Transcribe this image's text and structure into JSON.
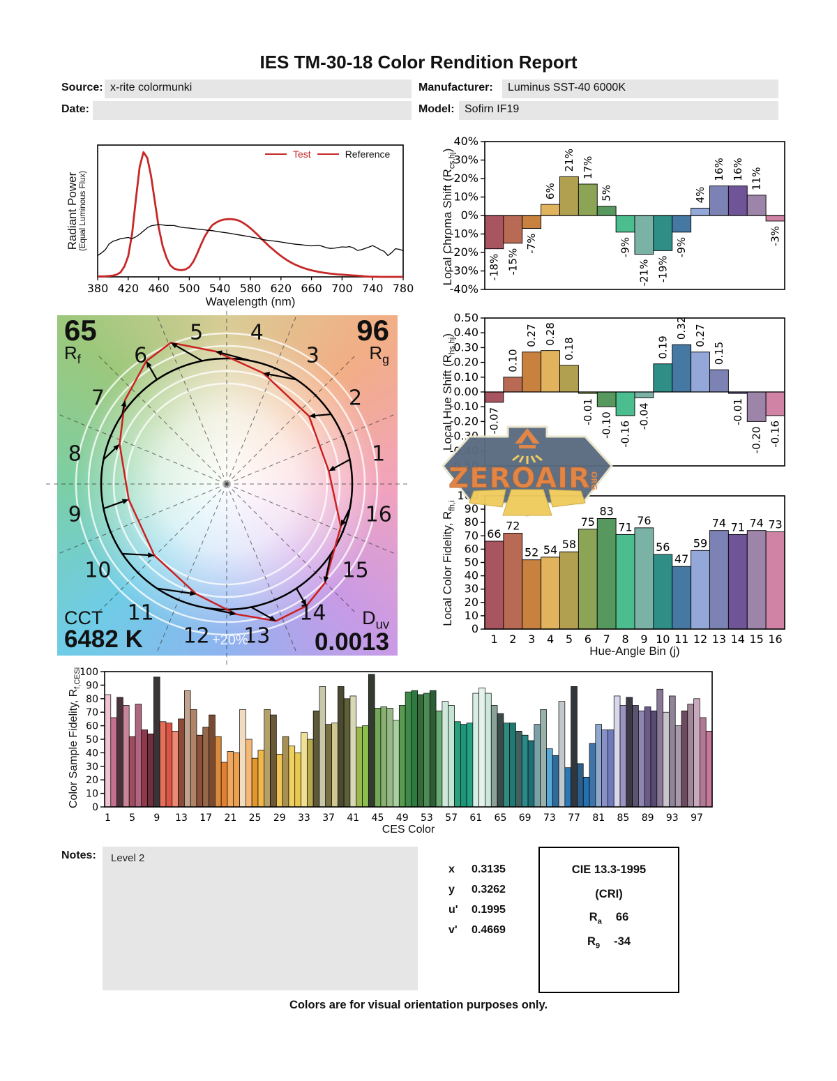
{
  "title": "IES TM-30-18 Color Rendition Report",
  "header": {
    "source_label": "Source:",
    "source_value": "x-rite colormunki",
    "manufacturer_label": "Manufacturer:",
    "manufacturer_value": "Luminus SST-40 6000K",
    "date_label": "Date:",
    "date_value": "",
    "model_label": "Model:",
    "model_value": "Sofirn IF19"
  },
  "watermark": {
    "text": "ZEROAIR",
    "suffix": "ORG",
    "badge_color": "#5a6b80",
    "accent": "#e0823f",
    "beam_color": "#f0cb5c",
    "border": "#ece4cc"
  },
  "bin_palette": [
    "#a85560",
    "#b96a55",
    "#c98140",
    "#e0b35c",
    "#b1a050",
    "#8ca455",
    "#57985f",
    "#4cbd8e",
    "#7ab3a5",
    "#2f8f87",
    "#4578a3",
    "#93a8d9",
    "#7d82b5",
    "#6f5598",
    "#9c85a8",
    "#d083a5"
  ],
  "chart_data": [
    {
      "id": "spd",
      "type": "line",
      "xlabel": "Wavelength (nm)",
      "ylabel": "Radiant Power",
      "ylabel2": "(Equal Luminous Flux)",
      "xlim": [
        380,
        780
      ],
      "ylim": [
        0,
        1.02
      ],
      "x_ticks": [
        380,
        420,
        460,
        500,
        540,
        580,
        620,
        660,
        700,
        740,
        780
      ],
      "legend": [
        {
          "label": "Test",
          "line_color": "#c62828",
          "text_color": "#c62828"
        },
        {
          "label": "Reference",
          "line_color": "#c62828",
          "text_color": "#111111"
        }
      ],
      "series": [
        {
          "name": "Test",
          "color": "#c62828",
          "width": 2.8,
          "x": [
            380,
            385,
            390,
            395,
            400,
            405,
            410,
            415,
            420,
            425,
            430,
            435,
            440,
            445,
            450,
            455,
            460,
            465,
            470,
            475,
            480,
            485,
            490,
            495,
            500,
            505,
            510,
            515,
            520,
            525,
            530,
            535,
            540,
            545,
            550,
            555,
            560,
            565,
            570,
            575,
            580,
            585,
            590,
            595,
            600,
            605,
            610,
            615,
            620,
            625,
            630,
            635,
            640,
            645,
            650,
            655,
            660,
            665,
            670,
            675,
            680,
            685,
            690,
            695,
            700,
            705,
            710,
            715,
            720,
            725,
            730,
            735,
            740,
            745,
            750,
            755,
            760,
            765,
            770,
            775,
            780
          ],
          "y": [
            0.004,
            0.004,
            0.005,
            0.007,
            0.01,
            0.018,
            0.035,
            0.08,
            0.16,
            0.33,
            0.6,
            0.85,
            0.965,
            0.92,
            0.78,
            0.58,
            0.38,
            0.24,
            0.15,
            0.09,
            0.065,
            0.055,
            0.052,
            0.058,
            0.075,
            0.115,
            0.175,
            0.245,
            0.31,
            0.36,
            0.4,
            0.42,
            0.435,
            0.443,
            0.447,
            0.447,
            0.443,
            0.435,
            0.42,
            0.4,
            0.377,
            0.35,
            0.322,
            0.292,
            0.263,
            0.235,
            0.21,
            0.185,
            0.162,
            0.141,
            0.122,
            0.105,
            0.091,
            0.079,
            0.068,
            0.059,
            0.051,
            0.044,
            0.038,
            0.033,
            0.029,
            0.025,
            0.022,
            0.019,
            0.017,
            0.015,
            0.013,
            0.011,
            0.009,
            0.007,
            0.004,
            0.002,
            0.001,
            0.001,
            0.0,
            0.0,
            0.0,
            0.0,
            0.0,
            0.0,
            0.0
          ]
        },
        {
          "name": "Reference",
          "color": "#000000",
          "width": 1.3,
          "x": [
            380,
            385,
            390,
            395,
            400,
            405,
            410,
            415,
            420,
            425,
            430,
            435,
            440,
            445,
            450,
            455,
            460,
            465,
            470,
            475,
            480,
            485,
            490,
            495,
            500,
            505,
            510,
            515,
            520,
            525,
            530,
            535,
            540,
            545,
            550,
            555,
            560,
            565,
            570,
            575,
            580,
            585,
            590,
            595,
            600,
            605,
            610,
            615,
            620,
            625,
            630,
            635,
            640,
            645,
            650,
            655,
            660,
            665,
            670,
            675,
            680,
            685,
            690,
            695,
            700,
            705,
            710,
            715,
            720,
            725,
            730,
            735,
            740,
            745,
            750,
            755,
            760,
            765,
            770,
            775,
            780
          ],
          "y": [
            0.165,
            0.185,
            0.21,
            0.255,
            0.275,
            0.285,
            0.295,
            0.3,
            0.305,
            0.295,
            0.31,
            0.33,
            0.355,
            0.38,
            0.395,
            0.4,
            0.405,
            0.402,
            0.398,
            0.398,
            0.397,
            0.39,
            0.383,
            0.38,
            0.378,
            0.374,
            0.37,
            0.368,
            0.364,
            0.36,
            0.358,
            0.353,
            0.348,
            0.344,
            0.34,
            0.335,
            0.33,
            0.325,
            0.32,
            0.315,
            0.31,
            0.304,
            0.298,
            0.29,
            0.285,
            0.281,
            0.278,
            0.274,
            0.27,
            0.265,
            0.26,
            0.256,
            0.252,
            0.25,
            0.246,
            0.242,
            0.24,
            0.242,
            0.244,
            0.235,
            0.225,
            0.22,
            0.222,
            0.227,
            0.232,
            0.23,
            0.234,
            0.224,
            0.205,
            0.21,
            0.22,
            0.23,
            0.242,
            0.228,
            0.21,
            0.198,
            0.165,
            0.188,
            0.218,
            0.213,
            0.203
          ]
        }
      ]
    },
    {
      "id": "chroma",
      "type": "bar",
      "ylabel_pre": "Local Chroma Shift (R",
      "ylabel_sub": "cs,hj",
      "ylabel_post": ")",
      "ylim": [
        -40,
        40
      ],
      "ytick_step": 10,
      "ytick_format": "pct",
      "label_style": "rotated",
      "values": [
        -18,
        -15,
        -7,
        6,
        21,
        17,
        5,
        -9,
        -21,
        -19,
        -9,
        4,
        16,
        16,
        11,
        -3
      ],
      "bar_labels": [
        "-18%",
        "-15%",
        "-7%",
        "6%",
        "21%",
        "17%",
        "5%",
        "-9%",
        "-21%",
        "-19%",
        "-9%",
        "4%",
        "16%",
        "16%",
        "11%",
        "-3%"
      ]
    },
    {
      "id": "hue",
      "type": "bar",
      "ylabel_pre": "Local Hue Shift (R",
      "ylabel_sub": "hs,hj",
      "ylabel_post": ")",
      "ylim": [
        -0.5,
        0.5
      ],
      "ytick_step": 0.1,
      "ytick_format": "2dp",
      "label_style": "rotated",
      "values": [
        -0.07,
        0.1,
        0.27,
        0.28,
        0.18,
        -0.01,
        -0.1,
        -0.16,
        -0.04,
        0.19,
        0.32,
        0.27,
        0.15,
        -0.01,
        -0.2,
        -0.16
      ],
      "bar_labels": [
        "-0.07",
        "0.10",
        "0.27",
        "0.28",
        "0.18",
        "-0.01",
        "-0.10",
        "-0.16",
        "-0.04",
        "0.19",
        "0.32",
        "0.27",
        "0.15",
        "-0.01",
        "-0.20",
        "-0.16"
      ]
    },
    {
      "id": "fidelity",
      "type": "bar",
      "ylabel_pre": "Local Color Fidelity, R",
      "ylabel_sub": "fh,i",
      "ylabel_post": "",
      "xlabel": "Hue-Angle Bin (j)",
      "ylim": [
        0,
        100
      ],
      "ytick_step": 10,
      "ytick_format": "int",
      "label_style": "top",
      "values": [
        66,
        72,
        52,
        54,
        58,
        75,
        83,
        71,
        76,
        56,
        47,
        59,
        74,
        71,
        74,
        73
      ],
      "bar_labels": [
        "66",
        "72",
        "52",
        "54",
        "58",
        "75",
        "83",
        "71",
        "76",
        "56",
        "47",
        "59",
        "74",
        "71",
        "74",
        "73"
      ],
      "categories": [
        "1",
        "2",
        "3",
        "4",
        "5",
        "6",
        "7",
        "8",
        "9",
        "10",
        "11",
        "12",
        "13",
        "14",
        "15",
        "16"
      ]
    },
    {
      "id": "ces",
      "type": "bar",
      "ylabel_pre": "Color Sample Fidelity, R",
      "ylabel_sub": "f,CESi",
      "ylabel_post": "",
      "xlabel": "CES Color",
      "ylim": [
        0,
        100
      ],
      "ytick_step": 10,
      "ytick_format": "int",
      "label_style": "none",
      "x_tick_every": 4,
      "values": [
        83,
        66,
        81,
        75,
        52,
        76,
        57,
        54,
        96,
        63,
        62,
        56,
        65,
        86,
        72,
        53,
        59,
        68,
        52,
        33,
        41,
        40,
        72,
        50,
        36,
        42,
        72,
        68,
        39,
        52,
        45,
        40,
        55,
        50,
        71,
        89,
        61,
        62,
        89,
        80,
        82,
        59,
        60,
        98,
        73,
        74,
        73,
        64,
        75,
        85,
        86,
        83,
        84,
        86,
        71,
        78,
        75,
        63,
        61,
        62,
        84,
        88,
        84,
        75,
        69,
        62,
        62,
        56,
        53,
        49,
        61,
        72,
        43,
        38,
        78,
        29,
        89,
        32,
        22,
        47,
        61,
        57,
        57,
        82,
        75,
        81,
        75,
        71,
        74,
        71,
        87,
        70,
        82,
        60,
        71,
        76,
        80,
        66,
        56
      ],
      "colors": [
        "#f0c3d1",
        "#c4708f",
        "#4a333c",
        "#c78599",
        "#a04c60",
        "#b06580",
        "#8e3a4c",
        "#6f2f3d",
        "#3a3337",
        "#e4705c",
        "#da5546",
        "#ea8a74",
        "#8c4a38",
        "#c2a390",
        "#b08468",
        "#8a5038",
        "#96684a",
        "#7a4a30",
        "#d98a3c",
        "#e08030",
        "#f0a860",
        "#eda04e",
        "#f2dcc0",
        "#f5b877",
        "#e1962e",
        "#f0b84a",
        "#b5a06a",
        "#6a5a38",
        "#f0c455",
        "#a89054",
        "#f0d060",
        "#e8c84e",
        "#f0e096",
        "#b8a84e",
        "#5c5838",
        "#c8c8a8",
        "#787040",
        "#d0c890",
        "#4a4a32",
        "#5f6038",
        "#d6d8b8",
        "#9ab84e",
        "#8cc04e",
        "#333a30",
        "#74a858",
        "#88b070",
        "#98b888",
        "#a8d0a0",
        "#5a9a50",
        "#3f8a48",
        "#2f7a40",
        "#356b3a",
        "#4d8a54",
        "#2e5e36",
        "#6aaa74",
        "#cfe8da",
        "#c4e4d4",
        "#2ba07a",
        "#1f9478",
        "#25a185",
        "#d8eee4",
        "#e6f2ec",
        "#cce8dc",
        "#8aa396",
        "#3a4a48",
        "#2f8a80",
        "#1f7a74",
        "#42615e",
        "#2a8a8a",
        "#1f6e74",
        "#7aa0a8",
        "#9ab0aa",
        "#58a8d8",
        "#2e6a9a",
        "#c0c8cc",
        "#2a78b8",
        "#30363a",
        "#2d5f8a",
        "#2470b0",
        "#3f74a8",
        "#8ea8d0",
        "#8890c8",
        "#6f7ab8",
        "#d8d8ec",
        "#9a94c0",
        "#3c3844",
        "#5c5470",
        "#8d86b0",
        "#6a5a88",
        "#594a72",
        "#8a7898",
        "#c8c4cc",
        "#8f8498",
        "#a79aaa",
        "#6e4a60",
        "#a08898",
        "#c8a8bc",
        "#b07a96",
        "#c87898",
        "#b85c80"
      ]
    },
    {
      "id": "cvg",
      "type": "cvg",
      "rf_value": "65",
      "rf_sym": "R",
      "rf_sub": "f",
      "rg_value": "96",
      "rg_sym": "R",
      "rg_sub": "g",
      "cct_label": "CCT",
      "cct_value": "6482 K",
      "duv_sym": "D",
      "duv_sub": "uv",
      "duv_value": "0.0013",
      "ring_label": "+20%",
      "bin_labels": [
        "1",
        "2",
        "3",
        "4",
        "5",
        "6",
        "7",
        "8",
        "9",
        "10",
        "11",
        "12",
        "13",
        "14",
        "15",
        "16"
      ],
      "chroma_shift_pct": [
        -18,
        -15,
        -7,
        6,
        21,
        17,
        5,
        -9,
        -21,
        -19,
        -9,
        4,
        16,
        16,
        11,
        -3
      ],
      "hue_shift": [
        -0.07,
        0.1,
        0.27,
        0.28,
        0.18,
        -0.01,
        -0.1,
        -0.16,
        -0.04,
        0.19,
        0.32,
        0.27,
        0.15,
        -0.01,
        -0.2,
        -0.16
      ],
      "reference_color": "#000000",
      "test_color": "#cc2020"
    }
  ],
  "notes": {
    "label": "Notes:",
    "content": "Level 2"
  },
  "coords": {
    "rows": [
      {
        "label": "x",
        "value": "0.3135"
      },
      {
        "label": "y",
        "value": "0.3262"
      },
      {
        "label": "u'",
        "value": "0.1995"
      },
      {
        "label": "v'",
        "value": "0.4669"
      }
    ]
  },
  "cri": {
    "title": "CIE 13.3-1995",
    "subtitle": "(CRI)",
    "rows": [
      {
        "sym": "R",
        "sub": "a",
        "value": "66"
      },
      {
        "sym": "R",
        "sub": "9",
        "value": "-34"
      }
    ]
  },
  "footer": "Colors are for visual orientation purposes only."
}
